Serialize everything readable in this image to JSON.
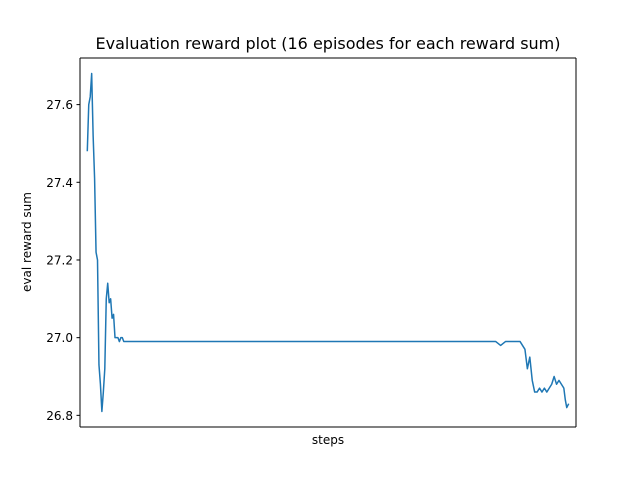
{
  "chart_data": {
    "type": "line",
    "title": "Evaluation reward plot (16 episodes for each reward sum)",
    "xlabel": "steps",
    "ylabel": "eval reward sum",
    "ylim": [
      26.77,
      27.72
    ],
    "yticks": [
      26.8,
      27.0,
      27.2,
      27.4,
      27.6
    ],
    "ytick_labels": [
      "26.8",
      "27.0",
      "27.2",
      "27.4",
      "27.6"
    ],
    "xlim": [
      -0.5,
      101.5
    ],
    "grid": false,
    "series": [
      {
        "color": "#1f77b4",
        "x": [
          1,
          1.3,
          1.6,
          1.9,
          2.2,
          2.5,
          2.8,
          3.1,
          3.4,
          3.7,
          4.0,
          4.3,
          4.6,
          4.9,
          5.2,
          5.5,
          5.8,
          6.1,
          6.4,
          6.7,
          7.0,
          7.3,
          7.6,
          7.9,
          8.2,
          8.5,
          8.8,
          9.1,
          9.4,
          9.7,
          10,
          15,
          20,
          30,
          40,
          50,
          60,
          70,
          80,
          85,
          86,
          87,
          88,
          89,
          90,
          90.5,
          91,
          91.5,
          92,
          92.5,
          93,
          93.5,
          94,
          94.5,
          95,
          95.5,
          96,
          96.5,
          97,
          97.5,
          98,
          98.5,
          99,
          99.3,
          99.6,
          100
        ],
        "y": [
          27.48,
          27.6,
          27.62,
          27.68,
          27.52,
          27.41,
          27.22,
          27.2,
          26.93,
          26.88,
          26.81,
          26.86,
          26.92,
          27.1,
          27.14,
          27.09,
          27.1,
          27.05,
          27.06,
          27.0,
          27.0,
          27.0,
          26.99,
          27.0,
          27.0,
          26.99,
          26.99,
          26.99,
          26.99,
          26.99,
          26.99,
          26.99,
          26.99,
          26.99,
          26.99,
          26.99,
          26.99,
          26.99,
          26.99,
          26.99,
          26.98,
          26.99,
          26.99,
          26.99,
          26.99,
          26.98,
          26.97,
          26.92,
          26.95,
          26.89,
          26.86,
          26.86,
          26.87,
          26.86,
          26.87,
          26.86,
          26.87,
          26.88,
          26.9,
          26.88,
          26.89,
          26.88,
          26.87,
          26.84,
          26.82,
          26.83
        ]
      }
    ]
  }
}
